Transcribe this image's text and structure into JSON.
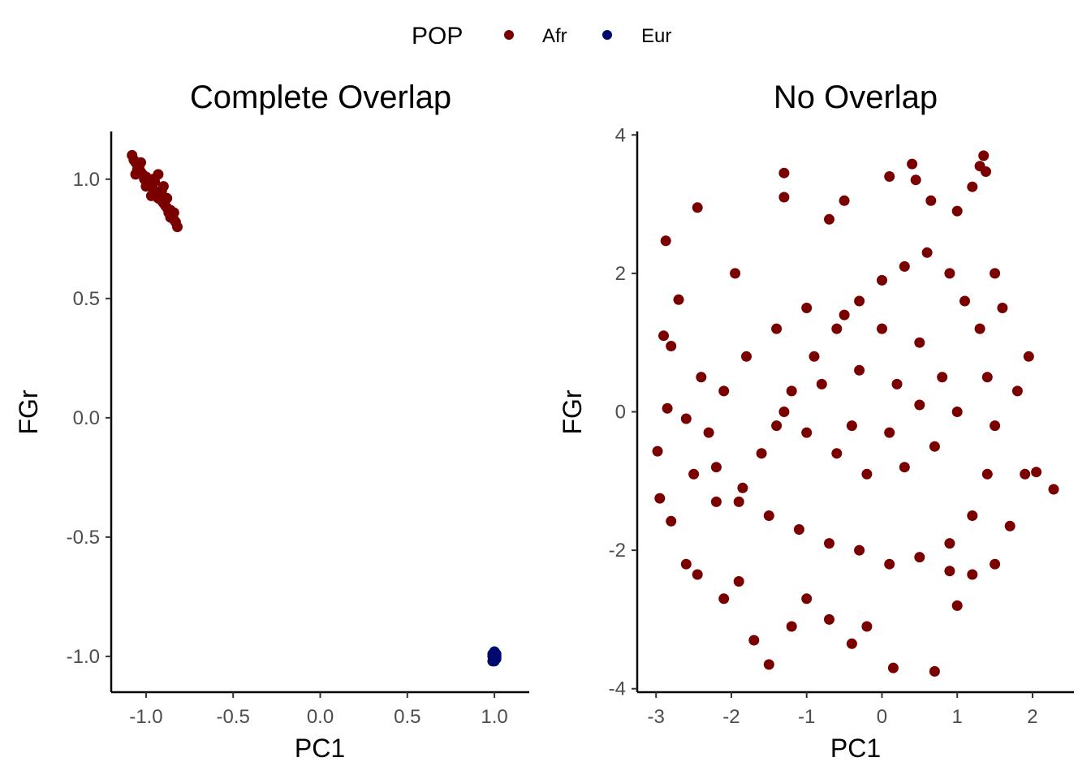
{
  "legend": {
    "title": "POP",
    "items": [
      {
        "label": "Afr",
        "color": "#7a0000"
      },
      {
        "label": "Eur",
        "color": "#000a6e"
      }
    ]
  },
  "chart_data": [
    {
      "type": "scatter",
      "title": "Complete Overlap",
      "xlabel": "PC1",
      "ylabel": "FGr",
      "xlim": [
        -1.2,
        1.2
      ],
      "ylim": [
        -1.15,
        1.2
      ],
      "x_ticks": [
        -1.0,
        -0.5,
        0.0,
        0.5,
        1.0
      ],
      "x_tick_labels": [
        "-1.0",
        "-0.5",
        "0.0",
        "0.5",
        "1.0"
      ],
      "y_ticks": [
        -1.0,
        -0.5,
        0.0,
        0.5,
        1.0
      ],
      "y_tick_labels": [
        "-1.0",
        "-0.5",
        "0.0",
        "0.5",
        "1.0"
      ],
      "grid": false,
      "series": [
        {
          "name": "Afr",
          "color": "#7a0000",
          "points": [
            [
              -1.08,
              1.1
            ],
            [
              -1.07,
              1.08
            ],
            [
              -1.06,
              1.07
            ],
            [
              -1.05,
              1.06
            ],
            [
              -1.05,
              1.04
            ],
            [
              -1.04,
              1.05
            ],
            [
              -1.03,
              1.03
            ],
            [
              -1.02,
              1.02
            ],
            [
              -1.01,
              1.0
            ],
            [
              -1.0,
              1.01
            ],
            [
              -0.99,
              0.99
            ],
            [
              -0.98,
              0.98
            ],
            [
              -0.97,
              0.97
            ],
            [
              -0.96,
              0.96
            ],
            [
              -0.95,
              0.95
            ],
            [
              -0.94,
              0.94
            ],
            [
              -0.93,
              0.92
            ],
            [
              -0.92,
              0.93
            ],
            [
              -0.91,
              0.91
            ],
            [
              -0.9,
              0.9
            ],
            [
              -0.89,
              0.89
            ],
            [
              -0.88,
              0.88
            ],
            [
              -0.87,
              0.86
            ],
            [
              -0.86,
              0.87
            ],
            [
              -0.85,
              0.85
            ],
            [
              -0.84,
              0.83
            ],
            [
              -0.83,
              0.82
            ],
            [
              -0.82,
              0.8
            ],
            [
              -0.93,
              1.02
            ],
            [
              -0.9,
              0.97
            ],
            [
              -1.06,
              1.02
            ],
            [
              -1.03,
              1.07
            ],
            [
              -0.96,
              1.0
            ],
            [
              -0.97,
              0.93
            ],
            [
              -0.88,
              0.92
            ],
            [
              -0.86,
              0.84
            ],
            [
              -1.0,
              0.97
            ],
            [
              -0.95,
              0.99
            ],
            [
              -0.91,
              0.95
            ],
            [
              -0.84,
              0.86
            ]
          ]
        },
        {
          "name": "Eur",
          "color": "#000a6e",
          "points": [
            [
              1.0,
              -1.0
            ],
            [
              0.99,
              -0.99
            ],
            [
              1.01,
              -1.01
            ],
            [
              1.0,
              -0.98
            ],
            [
              0.99,
              -1.02
            ],
            [
              1.01,
              -0.99
            ],
            [
              1.0,
              -1.02
            ],
            [
              0.99,
              -1.0
            ],
            [
              1.01,
              -1.0
            ],
            [
              1.0,
              -0.99
            ]
          ]
        }
      ]
    },
    {
      "type": "scatter",
      "title": "No Overlap",
      "xlabel": "PC1",
      "ylabel": "FGr",
      "xlim": [
        -3.25,
        2.55
      ],
      "ylim": [
        -4.05,
        4.05
      ],
      "x_ticks": [
        -3,
        -2,
        -1,
        0,
        1,
        2
      ],
      "x_tick_labels": [
        "-3",
        "-2",
        "-1",
        "0",
        "1",
        "2"
      ],
      "y_ticks": [
        -4,
        -2,
        0,
        2,
        4
      ],
      "y_tick_labels": [
        "-4",
        "-2",
        "0",
        "2",
        "4"
      ],
      "grid": false,
      "series": [
        {
          "name": "Afr",
          "color": "#7a0000",
          "points": [
            [
              -2.87,
              2.47
            ],
            [
              -2.7,
              1.62
            ],
            [
              -2.98,
              -0.57
            ],
            [
              -2.95,
              -1.25
            ],
            [
              -2.8,
              -1.58
            ],
            [
              -2.6,
              -2.2
            ],
            [
              -2.45,
              -2.35
            ],
            [
              -2.1,
              -2.7
            ],
            [
              -1.9,
              -2.45
            ],
            [
              -1.7,
              -3.3
            ],
            [
              -1.5,
              -3.65
            ],
            [
              -1.2,
              -3.1
            ],
            [
              -1.0,
              -2.7
            ],
            [
              -0.7,
              -3.0
            ],
            [
              -0.4,
              -3.35
            ],
            [
              -0.2,
              -3.1
            ],
            [
              0.15,
              -3.7
            ],
            [
              0.7,
              -3.75
            ],
            [
              1.0,
              -2.8
            ],
            [
              0.9,
              -2.3
            ],
            [
              1.2,
              -2.35
            ],
            [
              1.5,
              -2.2
            ],
            [
              1.7,
              -1.65
            ],
            [
              1.9,
              -0.9
            ],
            [
              2.05,
              -0.87
            ],
            [
              2.28,
              -1.12
            ],
            [
              1.95,
              0.8
            ],
            [
              1.8,
              0.3
            ],
            [
              1.6,
              1.5
            ],
            [
              1.5,
              2.0
            ],
            [
              1.38,
              3.47
            ],
            [
              1.3,
              3.55
            ],
            [
              1.35,
              3.7
            ],
            [
              1.2,
              3.25
            ],
            [
              1.0,
              2.9
            ],
            [
              0.65,
              3.05
            ],
            [
              0.45,
              3.35
            ],
            [
              0.4,
              3.58
            ],
            [
              0.1,
              3.4
            ],
            [
              -0.5,
              3.05
            ],
            [
              -0.7,
              2.78
            ],
            [
              -1.3,
              3.45
            ],
            [
              -1.3,
              3.1
            ],
            [
              -1.95,
              2.0
            ],
            [
              -2.45,
              2.95
            ],
            [
              -2.9,
              1.1
            ],
            [
              -2.8,
              0.95
            ],
            [
              -2.4,
              0.5
            ],
            [
              -2.6,
              -0.1
            ],
            [
              -2.85,
              0.05
            ],
            [
              -2.5,
              -0.9
            ],
            [
              -2.2,
              -1.3
            ],
            [
              -1.85,
              -1.1
            ],
            [
              -1.6,
              -0.6
            ],
            [
              -1.4,
              -0.2
            ],
            [
              -1.2,
              0.3
            ],
            [
              -0.9,
              0.8
            ],
            [
              -0.6,
              1.2
            ],
            [
              -0.3,
              1.6
            ],
            [
              0.0,
              1.9
            ],
            [
              0.3,
              2.1
            ],
            [
              0.6,
              2.3
            ],
            [
              0.9,
              2.0
            ],
            [
              1.1,
              1.6
            ],
            [
              1.3,
              1.2
            ],
            [
              1.4,
              0.5
            ],
            [
              1.5,
              -0.2
            ],
            [
              1.4,
              -0.9
            ],
            [
              1.2,
              -1.5
            ],
            [
              0.9,
              -1.9
            ],
            [
              0.5,
              -2.1
            ],
            [
              0.1,
              -2.2
            ],
            [
              -0.3,
              -2.0
            ],
            [
              -0.7,
              -1.9
            ],
            [
              -1.1,
              -1.7
            ],
            [
              -1.5,
              -1.5
            ],
            [
              -1.9,
              -1.3
            ],
            [
              -2.2,
              -0.8
            ],
            [
              -2.3,
              -0.3
            ],
            [
              -2.1,
              0.3
            ],
            [
              -1.8,
              0.8
            ],
            [
              -1.4,
              1.2
            ],
            [
              -1.0,
              1.5
            ],
            [
              -0.5,
              1.4
            ],
            [
              0.0,
              1.2
            ],
            [
              0.5,
              1.0
            ],
            [
              0.8,
              0.5
            ],
            [
              1.0,
              0.0
            ],
            [
              0.7,
              -0.5
            ],
            [
              0.3,
              -0.8
            ],
            [
              -0.2,
              -0.9
            ],
            [
              -0.6,
              -0.6
            ],
            [
              -1.0,
              -0.3
            ],
            [
              -1.3,
              0.0
            ],
            [
              -0.8,
              0.4
            ],
            [
              -0.3,
              0.6
            ],
            [
              0.2,
              0.4
            ],
            [
              0.5,
              0.1
            ],
            [
              0.1,
              -0.3
            ],
            [
              -0.4,
              -0.2
            ]
          ]
        }
      ]
    }
  ]
}
